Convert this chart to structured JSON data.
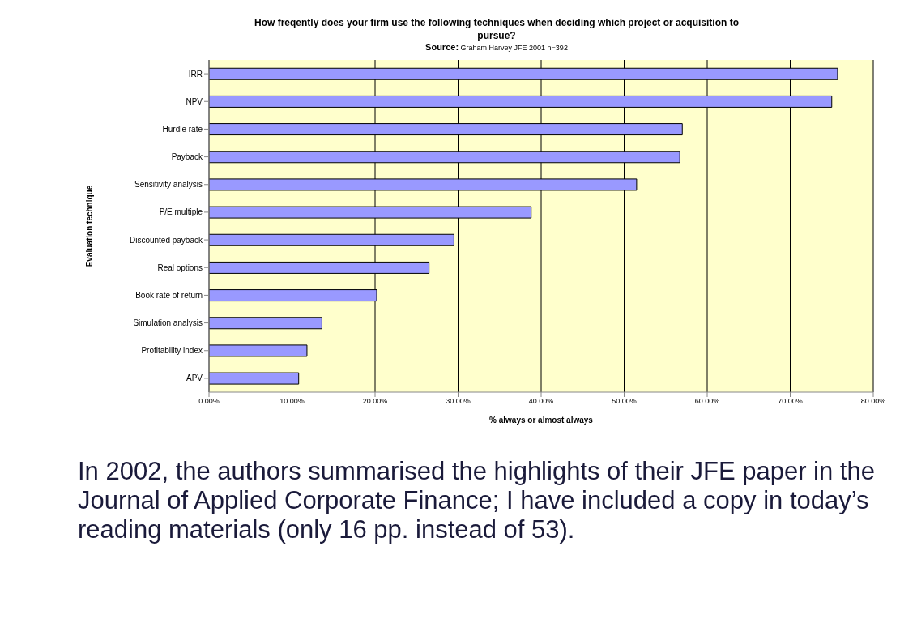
{
  "chart_data": {
    "type": "bar",
    "orientation": "horizontal",
    "title": "How freqently does your firm use the following techniques when deciding which project  or acquisition to pursue?",
    "subtitle": "Source: Graham Harvey JFE 2001 n=392",
    "xlabel": "% always or almost always",
    "ylabel": "Evaluation technique",
    "categories": [
      "IRR",
      "NPV",
      "Hurdle rate",
      "Payback",
      "Sensitivity analysis",
      "P/E multiple",
      "Discounted payback",
      "Real options",
      "Book rate of return",
      "Simulation analysis",
      "Profitability index",
      "APV"
    ],
    "values": [
      75.7,
      75.0,
      57.0,
      56.7,
      51.5,
      38.8,
      29.5,
      26.5,
      20.2,
      13.6,
      11.8,
      10.8
    ],
    "color": "#9999ff",
    "xlim": [
      0,
      80
    ],
    "xticks": [
      {
        "value": 0,
        "label": "0.00%"
      },
      {
        "value": 10,
        "label": "10.00%"
      },
      {
        "value": 20,
        "label": "20.00%"
      },
      {
        "value": 30,
        "label": "30.00%"
      },
      {
        "value": 40,
        "label": "40.00%"
      },
      {
        "value": 50,
        "label": "50.00%"
      },
      {
        "value": 60,
        "label": "60.00%"
      },
      {
        "value": 70,
        "label": "70.00%"
      },
      {
        "value": 80,
        "label": "80.00%"
      }
    ],
    "grid": "x",
    "legend": false,
    "annotations": [
      "In 2002, the authors summarised the highlights of their JFE paper in the Journal of Applied Corporate Finance; I have included a copy in today’s reading materials (only 16 pp. instead of 53)."
    ]
  }
}
